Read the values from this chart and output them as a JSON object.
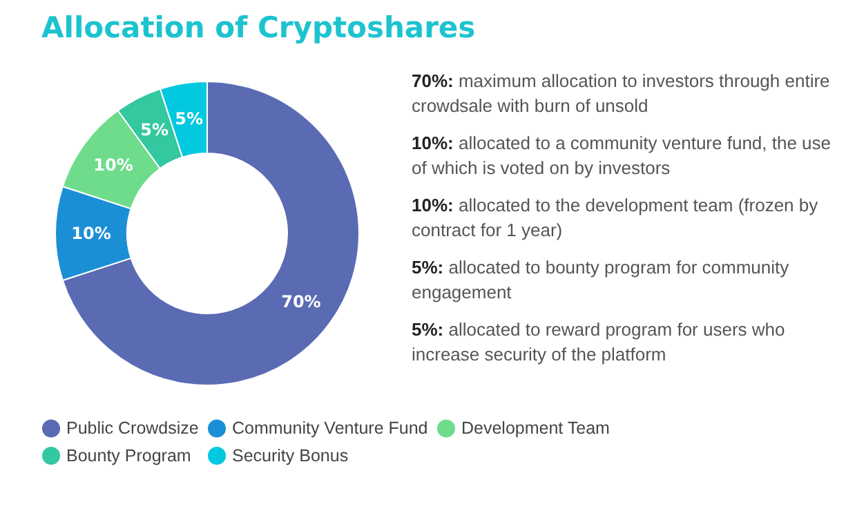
{
  "chart_data": {
    "type": "donut",
    "title": "Allocation of Cryptoshares",
    "categories": [
      "Public Crowdsize",
      "Community Venture Fund",
      "Development Team",
      "Bounty Program",
      "Security Bonus"
    ],
    "values": [
      70,
      10,
      10,
      5,
      5
    ],
    "value_labels": [
      "70%",
      "10%",
      "10%",
      "5%",
      "5%"
    ],
    "colors": [
      "#5a6bb3",
      "#1b8fd6",
      "#6fdc8c",
      "#33c8a0",
      "#02c9e0"
    ],
    "legend": "bottom",
    "annotations": [
      "70%: maximum allocation to investors through entire crowdsale with burn of unsold",
      "10%: allocated to a community venture fund, the use of which is voted on by investors",
      "10%: allocated to the development team (frozen by contract for 1 year)",
      "5%: allocated to bounty program for community engagement",
      "5%: allocated to reward program for users who increase security of the platform"
    ]
  }
}
